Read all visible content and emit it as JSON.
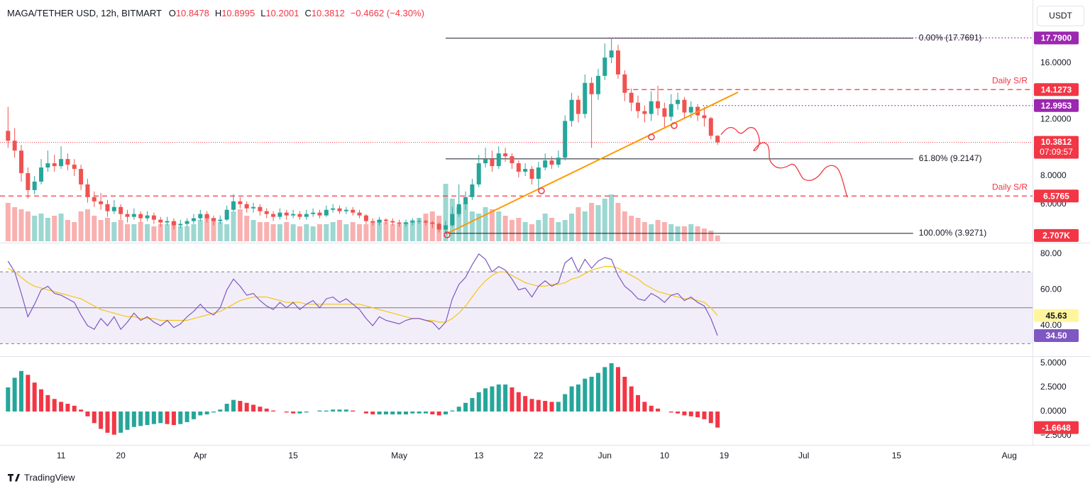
{
  "chart_data": {
    "type": "candlestick",
    "title": "MAGA/TETHER USD, 12h, BITMART",
    "ohlc_letters": [
      "O",
      "H",
      "L",
      "C"
    ],
    "change": "−0.4662 (−4.30%)",
    "currency": "USDT",
    "brand": "TradingView",
    "grid": false,
    "up_color": "#26a69a",
    "down_color": "#ef5350",
    "x": [
      2,
      3,
      4,
      5,
      6,
      7,
      8,
      9,
      10,
      11,
      12,
      13,
      14,
      15,
      16,
      17,
      18,
      19,
      20,
      21,
      22,
      23,
      24,
      25,
      26,
      27,
      28,
      29,
      30,
      31,
      32,
      33,
      34,
      35,
      36,
      37,
      38,
      39,
      40,
      41,
      42,
      43,
      44,
      45,
      46,
      47,
      48,
      49,
      50,
      51,
      52,
      53,
      54,
      55,
      56,
      57,
      58,
      59,
      60,
      61,
      62,
      63,
      64,
      65,
      66,
      67,
      68,
      69,
      70,
      71,
      72,
      73,
      74,
      75,
      76,
      77,
      78,
      79,
      80,
      81,
      82,
      83,
      84,
      85,
      86,
      87,
      88,
      89,
      90,
      91,
      92,
      93,
      94,
      95,
      96,
      97,
      98,
      99,
      100,
      101,
      102,
      103,
      104,
      105,
      106,
      107,
      108,
      109
    ],
    "xlim": [
      0.79,
      156.5
    ],
    "xticks": [
      {
        "value": 10,
        "label": "11"
      },
      {
        "value": 19,
        "label": "20"
      },
      {
        "value": 31,
        "label": "Apr"
      },
      {
        "value": 45,
        "label": "15"
      },
      {
        "value": 61,
        "label": "May"
      },
      {
        "value": 73,
        "label": "13"
      },
      {
        "value": 82,
        "label": "22"
      },
      {
        "value": 92,
        "label": "Jun"
      },
      {
        "value": 101,
        "label": "10"
      },
      {
        "value": 110,
        "label": "19"
      },
      {
        "value": 122,
        "label": "Jul"
      },
      {
        "value": 136,
        "label": "15"
      },
      {
        "value": 153,
        "label": "Aug"
      }
    ],
    "open": [
      11.2,
      10.5,
      9.8,
      8.2,
      7.0,
      7.6,
      8.6,
      8.9,
      8.7,
      9.2,
      8.8,
      8.5,
      7.4,
      6.5,
      6.2,
      6.0,
      5.5,
      5.8,
      5.3,
      5.1,
      5.3,
      5.0,
      5.2,
      4.9,
      4.7,
      4.8,
      4.5,
      4.6,
      4.8,
      5.0,
      5.3,
      5.0,
      4.8,
      4.9,
      5.6,
      6.2,
      6.0,
      5.7,
      5.8,
      5.5,
      5.3,
      5.1,
      5.4,
      5.2,
      5.3,
      5.1,
      5.3,
      5.4,
      5.2,
      5.6,
      5.7,
      5.5,
      5.6,
      5.4,
      5.2,
      4.8,
      4.7,
      4.9,
      4.8,
      4.7,
      4.6,
      4.7,
      4.8,
      4.8,
      4.7,
      4.6,
      4.2,
      4.5,
      5.3,
      6.0,
      6.5,
      7.4,
      8.9,
      9.2,
      8.7,
      9.6,
      9.4,
      8.9,
      8.3,
      8.5,
      7.8,
      8.6,
      9.1,
      8.8,
      9.3,
      11.9,
      13.4,
      12.4,
      14.6,
      13.8,
      15.1,
      16.4,
      16.9,
      15.2,
      13.9,
      13.2,
      12.6,
      12.4,
      13.3,
      12.8,
      12.2,
      13.1,
      13.4,
      12.5,
      12.9,
      12.3,
      12.1,
      10.8478
    ],
    "high": [
      12.9,
      11.4,
      10.2,
      8.6,
      8.0,
      9.2,
      9.8,
      9.5,
      10.1,
      9.6,
      9.2,
      8.8,
      7.8,
      6.9,
      6.8,
      6.3,
      6.3,
      6.0,
      5.6,
      5.7,
      5.5,
      5.5,
      5.4,
      5.1,
      5.1,
      5.0,
      4.9,
      5.0,
      5.3,
      5.6,
      5.5,
      5.2,
      5.2,
      5.9,
      6.7,
      6.5,
      6.2,
      6.1,
      6.0,
      5.7,
      5.5,
      5.7,
      5.6,
      5.6,
      5.5,
      5.6,
      5.7,
      5.6,
      5.9,
      6.0,
      5.9,
      5.8,
      5.8,
      5.6,
      5.3,
      5.0,
      5.1,
      5.0,
      5.0,
      4.9,
      4.9,
      5.0,
      5.0,
      4.9,
      4.8,
      4.7,
      4.8,
      5.8,
      7.4,
      6.9,
      7.8,
      9.5,
      10.0,
      9.8,
      10.1,
      10.0,
      9.6,
      9.1,
      8.9,
      8.7,
      9.0,
      9.6,
      9.4,
      9.8,
      12.3,
      13.9,
      13.7,
      15.2,
      15.0,
      15.6,
      17.4,
      17.79,
      17.3,
      15.5,
      14.2,
      13.7,
      13.0,
      14.0,
      14.4,
      13.2,
      13.8,
      13.9,
      13.6,
      13.3,
      13.1,
      12.9,
      12.2,
      10.8995
    ],
    "low": [
      10.0,
      9.3,
      7.6,
      6.4,
      6.7,
      7.4,
      8.3,
      8.3,
      8.5,
      8.4,
      8.0,
      7.0,
      6.1,
      5.8,
      5.6,
      5.1,
      5.3,
      4.9,
      4.7,
      4.9,
      4.7,
      4.8,
      4.6,
      4.4,
      4.5,
      4.2,
      4.3,
      4.4,
      4.6,
      4.8,
      4.7,
      4.5,
      4.6,
      4.8,
      5.5,
      5.7,
      5.4,
      5.4,
      5.2,
      5.0,
      4.8,
      4.9,
      4.9,
      5.0,
      4.9,
      4.9,
      5.1,
      5.0,
      5.1,
      5.4,
      5.3,
      5.3,
      5.2,
      5.0,
      4.6,
      4.5,
      4.5,
      4.6,
      4.5,
      4.4,
      4.4,
      4.5,
      4.6,
      4.5,
      4.3,
      4.0,
      3.93,
      4.4,
      5.1,
      5.6,
      6.3,
      7.2,
      8.6,
      8.3,
      8.5,
      9.0,
      8.5,
      7.9,
      8.0,
      7.4,
      6.9,
      8.4,
      8.5,
      8.6,
      9.1,
      11.5,
      11.8,
      12.1,
      10.0,
      13.4,
      14.8,
      16.0,
      14.9,
      13.3,
      12.6,
      12.1,
      11.8,
      11.9,
      12.3,
      11.4,
      11.9,
      12.7,
      12.1,
      12.1,
      11.9,
      11.5,
      10.6,
      10.2001
    ],
    "close": [
      10.5,
      9.8,
      8.2,
      7.0,
      7.6,
      8.6,
      8.9,
      8.7,
      9.2,
      8.8,
      8.5,
      7.4,
      6.5,
      6.2,
      6.0,
      5.5,
      5.8,
      5.3,
      5.1,
      5.3,
      5.0,
      5.2,
      4.9,
      4.7,
      4.8,
      4.5,
      4.6,
      4.8,
      5.0,
      5.3,
      5.0,
      4.8,
      4.9,
      5.6,
      6.2,
      6.0,
      5.7,
      5.8,
      5.5,
      5.3,
      5.1,
      5.4,
      5.2,
      5.3,
      5.1,
      5.3,
      5.4,
      5.2,
      5.6,
      5.7,
      5.5,
      5.6,
      5.4,
      5.2,
      4.8,
      4.7,
      4.9,
      4.8,
      4.7,
      4.6,
      4.7,
      4.8,
      4.8,
      4.7,
      4.6,
      4.2,
      4.5,
      5.3,
      6.0,
      6.5,
      7.4,
      8.9,
      9.2,
      8.7,
      9.6,
      9.4,
      8.9,
      8.3,
      8.5,
      7.8,
      8.6,
      9.1,
      8.8,
      9.3,
      11.9,
      13.4,
      12.4,
      14.6,
      13.8,
      15.1,
      16.4,
      16.9,
      15.2,
      13.9,
      13.2,
      12.6,
      12.4,
      13.3,
      12.8,
      12.2,
      13.1,
      13.4,
      12.5,
      12.9,
      12.3,
      12.1,
      10.8474,
      10.3812
    ],
    "ylim": [
      3.37,
      20.48
    ],
    "yticks": [
      {
        "value": 16,
        "label": "16.0000"
      },
      {
        "value": 12,
        "label": "12.0000"
      },
      {
        "value": 8,
        "label": "8.0000"
      },
      {
        "value": 6,
        "label": "6.0000"
      }
    ],
    "countdown": "07:09:57",
    "volume": [
      18,
      16,
      15,
      14,
      12,
      13,
      11,
      12,
      13,
      10,
      9,
      14,
      15,
      12,
      10,
      11,
      9,
      10,
      8,
      8,
      9,
      8,
      7,
      8,
      8,
      9,
      7,
      7,
      8,
      10,
      12,
      11,
      9,
      8,
      14,
      15,
      12,
      10,
      9,
      9,
      8,
      8,
      9,
      8,
      7,
      8,
      7,
      8,
      8,
      9,
      10,
      8,
      9,
      8,
      8,
      9,
      10,
      9,
      8,
      8,
      9,
      10,
      11,
      13,
      14,
      12,
      27,
      20,
      16,
      18,
      14,
      13,
      16,
      15,
      14,
      12,
      10,
      11,
      9,
      8,
      10,
      13,
      11,
      9,
      10,
      13,
      16,
      14,
      18,
      17,
      20,
      22,
      18,
      14,
      12,
      11,
      9,
      8,
      10,
      9,
      8,
      7,
      7,
      8,
      7,
      6,
      5,
      2.707
    ],
    "volume_lim": [
      0,
      30
    ],
    "volume_label": "2.707K",
    "levels": [
      {
        "value": 17.79,
        "label": "17.7900",
        "start": 92.6,
        "style": "dotted",
        "color": "#9c27b0"
      },
      {
        "value": 14.1273,
        "label": "14.1273",
        "start": 95,
        "style": "dashed",
        "color": "#f23645",
        "note": "Daily S/R"
      },
      {
        "value": 12.9953,
        "label": "12.9953",
        "start": 106.8,
        "style": "dotted",
        "color": "#9c27b0"
      },
      {
        "value": 6.5765,
        "label": "6.5765",
        "start": 0.79,
        "style": "dashed",
        "color": "#f23645",
        "note": "Daily S/R"
      }
    ],
    "fib": {
      "start": 68,
      "end": 138.5,
      "color": "#131722",
      "levels": [
        {
          "value": 17.7691,
          "label": "0.00% (17.7691)"
        },
        {
          "value": 9.2147,
          "label": "61.80% (9.2147)"
        },
        {
          "value": 3.9271,
          "label": "100.00% (3.9271)"
        }
      ]
    },
    "rsi": {
      "values": [
        76,
        70,
        58,
        45,
        52,
        60,
        62,
        58,
        57,
        55,
        53,
        46,
        40,
        38,
        44,
        40,
        45,
        38,
        42,
        47,
        43,
        45,
        42,
        40,
        43,
        39,
        41,
        45,
        48,
        52,
        48,
        46,
        50,
        60,
        66,
        62,
        57,
        58,
        54,
        51,
        49,
        53,
        50,
        53,
        49,
        52,
        54,
        50,
        55,
        56,
        53,
        55,
        52,
        49,
        44,
        40,
        45,
        43,
        42,
        41,
        43,
        44,
        44,
        43,
        42,
        38,
        42,
        55,
        63,
        67,
        74,
        80,
        77,
        70,
        73,
        71,
        66,
        60,
        61,
        56,
        62,
        65,
        62,
        64,
        75,
        78,
        70,
        77,
        72,
        76,
        78,
        77,
        68,
        62,
        59,
        55,
        54,
        58,
        56,
        53,
        57,
        58,
        54,
        56,
        53,
        51,
        44,
        34.5
      ],
      "ma": [
        72,
        70,
        67,
        64,
        62,
        61,
        60,
        59,
        58,
        57,
        56,
        55,
        53,
        51,
        49,
        48,
        47,
        46,
        45,
        45,
        44,
        44,
        44,
        43,
        43,
        43,
        43,
        43,
        44,
        45,
        46,
        47,
        48,
        50,
        52,
        54,
        55,
        56,
        56,
        56,
        55,
        54,
        53,
        53,
        53,
        52,
        52,
        52,
        52,
        52,
        52,
        52,
        52,
        52,
        51,
        50,
        49,
        48,
        47,
        46,
        45,
        44,
        44,
        43,
        43,
        42,
        42,
        44,
        47,
        51,
        56,
        61,
        65,
        68,
        70,
        70,
        68,
        66,
        64,
        63,
        62,
        62,
        63,
        63,
        64,
        66,
        67,
        69,
        71,
        72,
        73,
        73,
        72,
        70,
        68,
        66,
        63,
        61,
        59,
        58,
        57,
        56,
        55,
        55,
        54,
        53,
        50,
        45.63
      ],
      "last_label": "34.50",
      "color": "#7e57c2",
      "ma_color": "#f5c518",
      "ylim": [
        23.8,
        85.1
      ],
      "yticks": [
        {
          "value": 80,
          "label": "80.00"
        },
        {
          "value": 60,
          "label": "60.00"
        },
        {
          "value": 40,
          "label": "40.00"
        }
      ],
      "band": [
        30,
        70
      ],
      "mid": 50
    },
    "macd": {
      "values": [
        2.5,
        3.5,
        4.2,
        3.8,
        3.0,
        2.3,
        1.7,
        1.3,
        1.0,
        0.8,
        0.6,
        0.2,
        -0.5,
        -1.2,
        -1.8,
        -2.2,
        -2.4,
        -2.2,
        -1.9,
        -1.6,
        -1.5,
        -1.4,
        -1.3,
        -1.2,
        -1.3,
        -1.4,
        -1.3,
        -1.1,
        -0.8,
        -0.4,
        -0.3,
        -0.1,
        0.2,
        0.8,
        1.2,
        1.1,
        0.9,
        0.7,
        0.5,
        0.3,
        0.1,
        0.0,
        -0.1,
        -0.2,
        -0.2,
        -0.1,
        0.0,
        0.1,
        0.1,
        0.2,
        0.2,
        0.2,
        0.1,
        0.0,
        -0.2,
        -0.3,
        -0.3,
        -0.3,
        -0.3,
        -0.3,
        -0.3,
        -0.2,
        -0.2,
        -0.2,
        -0.3,
        -0.4,
        -0.3,
        0.1,
        0.5,
        0.9,
        1.4,
        2.0,
        2.4,
        2.6,
        2.8,
        2.8,
        2.5,
        2.0,
        1.6,
        1.3,
        1.2,
        1.1,
        1.0,
        1.0,
        1.8,
        2.6,
        2.8,
        3.4,
        3.6,
        4.0,
        4.6,
        5.0,
        4.6,
        3.6,
        2.6,
        1.7,
        1.0,
        0.6,
        0.3,
        0.0,
        -0.1,
        -0.2,
        -0.4,
        -0.5,
        -0.6,
        -0.8,
        -1.2,
        -1.6648
      ],
      "rising_color": "#26a69a",
      "falling_color": "#f23645",
      "ylim": [
        -3.31,
        5.51
      ],
      "yticks": [
        {
          "value": 5,
          "label": "5.0000"
        },
        {
          "value": 2.5,
          "label": "2.5000"
        },
        {
          "value": 0,
          "label": "0.0000"
        },
        {
          "value": -2.5,
          "label": "−2.5000"
        }
      ]
    }
  }
}
